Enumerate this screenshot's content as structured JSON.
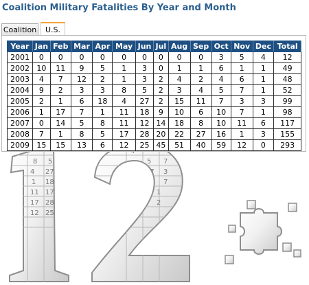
{
  "page": {
    "title": "Coalition Military Fatalities By Year and Month"
  },
  "tabs": [
    {
      "label": "Coalition",
      "active": false
    },
    {
      "label": "U.S.",
      "active": true
    }
  ],
  "table": {
    "headers": [
      "Year",
      "Jan",
      "Feb",
      "Mar",
      "Apr",
      "May",
      "Jun",
      "Jul",
      "Aug",
      "Sep",
      "Oct",
      "Nov",
      "Dec",
      "Total"
    ],
    "rows": [
      [
        "2001",
        "0",
        "0",
        "0",
        "0",
        "0",
        "0",
        "0",
        "0",
        "0",
        "3",
        "5",
        "4",
        "12"
      ],
      [
        "2002",
        "10",
        "11",
        "9",
        "5",
        "1",
        "3",
        "0",
        "1",
        "1",
        "6",
        "1",
        "1",
        "49"
      ],
      [
        "2003",
        "4",
        "7",
        "12",
        "2",
        "1",
        "3",
        "2",
        "4",
        "2",
        "4",
        "6",
        "1",
        "48"
      ],
      [
        "2004",
        "9",
        "2",
        "3",
        "3",
        "8",
        "5",
        "2",
        "3",
        "4",
        "5",
        "7",
        "1",
        "52"
      ],
      [
        "2005",
        "2",
        "1",
        "6",
        "18",
        "4",
        "27",
        "2",
        "15",
        "11",
        "7",
        "3",
        "3",
        "99"
      ],
      [
        "2006",
        "1",
        "17",
        "7",
        "1",
        "11",
        "18",
        "9",
        "10",
        "6",
        "10",
        "7",
        "1",
        "98"
      ],
      [
        "2007",
        "0",
        "14",
        "5",
        "8",
        "11",
        "12",
        "14",
        "18",
        "8",
        "10",
        "11",
        "6",
        "117"
      ],
      [
        "2008",
        "7",
        "1",
        "8",
        "5",
        "17",
        "28",
        "20",
        "22",
        "27",
        "16",
        "1",
        "3",
        "155"
      ],
      [
        "2009",
        "15",
        "15",
        "13",
        "6",
        "12",
        "25",
        "45",
        "51",
        "40",
        "59",
        "12",
        "0",
        "293"
      ]
    ]
  },
  "graphic": {
    "big_number": "12",
    "reflected_cells": [
      "8",
      "5",
      "4",
      "27",
      "1",
      "18",
      "11",
      "17",
      "17",
      "28",
      "12",
      "25",
      "4",
      "5",
      "7",
      "17",
      "3",
      "7",
      "1",
      "2"
    ],
    "stroke_color": "#9a9a9a"
  },
  "theme": {
    "title_color": "#2b5f8e",
    "header_bg": "#1e4f82",
    "active_tab_accent": "#f0a43a"
  }
}
